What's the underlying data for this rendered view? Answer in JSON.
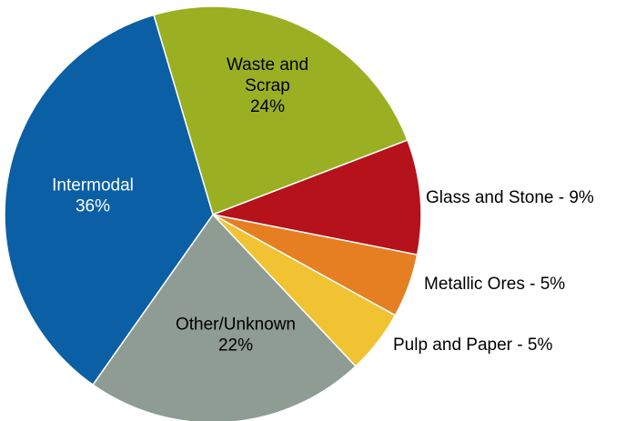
{
  "chart_data": {
    "type": "pie",
    "title": "",
    "start_angle_deg": -16.5,
    "direction": "clockwise",
    "slices": [
      {
        "name": "Waste and Scrap",
        "value": 24,
        "percent_label": "24%",
        "color": "#9BAF23",
        "label_position": "inside",
        "label_lines": [
          "Waste and",
          "Scrap",
          "24%"
        ]
      },
      {
        "name": "Glass and Stone",
        "value": 9,
        "percent_label": "9%",
        "color": "#B5121B",
        "label_position": "outside",
        "label_lines": [
          "Glass and Stone - 9%"
        ]
      },
      {
        "name": "Metallic Ores",
        "value": 5,
        "percent_label": "5%",
        "color": "#E67E22",
        "label_position": "outside",
        "label_lines": [
          "Metallic Ores - 5%"
        ]
      },
      {
        "name": "Pulp and Paper",
        "value": 5,
        "percent_label": "5%",
        "color": "#F1C232",
        "label_position": "outside",
        "label_lines": [
          "Pulp and Paper - 5%"
        ]
      },
      {
        "name": "Other/Unknown",
        "value": 22,
        "percent_label": "22%",
        "color": "#8E9C93",
        "label_position": "inside",
        "label_lines": [
          "Other/Unknown",
          "22%"
        ]
      },
      {
        "name": "Intermodal",
        "value": 36,
        "percent_label": "36%",
        "color": "#0B5FA5",
        "label_position": "inside",
        "label_lines": [
          "Intermodal",
          "36%"
        ]
      }
    ]
  }
}
